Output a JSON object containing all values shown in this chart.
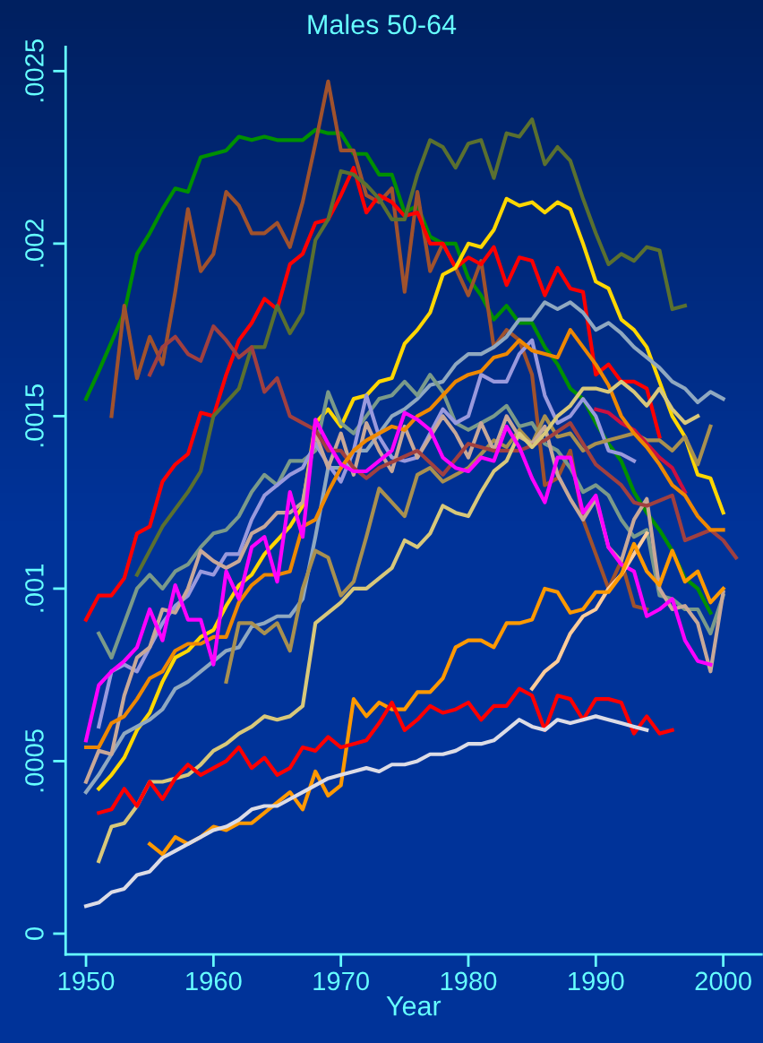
{
  "chart_data": {
    "type": "line",
    "title": "Males 50-64",
    "xlabel": "Year",
    "xlim": [
      1948.4,
      2003
    ],
    "xticks": [
      1950,
      1960,
      1970,
      1980,
      1990,
      2000
    ],
    "ylim": [
      -6e-05,
      0.00257
    ],
    "yticks": [
      {
        "value": 0,
        "label": "0"
      },
      {
        "value": 0.0005,
        "label": ".0005"
      },
      {
        "value": 0.001,
        "label": ".001"
      },
      {
        "value": 0.0015,
        "label": ".0015"
      },
      {
        "value": 0.002,
        "label": ".002"
      },
      {
        "value": 0.0025,
        "label": ".0025"
      }
    ],
    "grid": false,
    "legend": false,
    "line_style": "solid",
    "marker": "none",
    "series": [
      {
        "color": "#009000",
        "x": [
          1950,
          1951,
          1953,
          1954,
          1955,
          1956,
          1957,
          1958,
          1959,
          1960,
          1961,
          1962,
          1963,
          1964,
          1965,
          1966,
          1967,
          1968,
          1969,
          1970,
          1971,
          1972,
          1973,
          1974,
          1975,
          1976,
          1977,
          1978,
          1979,
          1980,
          1981,
          1982,
          1983,
          1984,
          1985,
          1986,
          1987,
          1988,
          1989,
          1990,
          1991,
          1992,
          1993,
          1994,
          1995,
          1996,
          1997,
          1998,
          1999
        ],
        "values": [
          0.00155,
          0.00163,
          0.0018,
          0.00197,
          0.00203,
          0.0021,
          0.00216,
          0.00215,
          0.00225,
          0.00226,
          0.00227,
          0.00231,
          0.0023,
          0.00231,
          0.0023,
          0.0023,
          0.0023,
          0.00233,
          0.00232,
          0.00232,
          0.00226,
          0.00226,
          0.0022,
          0.0022,
          0.00209,
          0.00211,
          0.00202,
          0.002,
          0.002,
          0.0019,
          0.00185,
          0.00178,
          0.00182,
          0.00177,
          0.00177,
          0.0017,
          0.00165,
          0.00158,
          0.00155,
          0.00148,
          0.00142,
          0.00137,
          0.00128,
          0.00122,
          0.00117,
          0.00111,
          0.00103,
          0.001,
          0.00093
        ]
      },
      {
        "color": "#a0522d",
        "x": [
          1952,
          1953,
          1954,
          1955,
          1956,
          1957,
          1958,
          1959,
          1960,
          1961,
          1962,
          1963,
          1964,
          1965,
          1966,
          1967,
          1968,
          1969,
          1970,
          1971,
          1972,
          1973,
          1974,
          1975,
          1976,
          1977,
          1978,
          1979,
          1980,
          1981,
          1982,
          1983,
          1984,
          1985,
          1986,
          1987,
          1988,
          1989,
          1990,
          1991,
          1992,
          1993,
          1994
        ],
        "values": [
          0.0015,
          0.00182,
          0.00161,
          0.00173,
          0.00165,
          0.00186,
          0.0021,
          0.00192,
          0.00197,
          0.00215,
          0.00211,
          0.00203,
          0.00203,
          0.00206,
          0.00199,
          0.00212,
          0.00229,
          0.00247,
          0.00227,
          0.00227,
          0.00214,
          0.00212,
          0.00216,
          0.00186,
          0.00215,
          0.00192,
          0.002,
          0.00193,
          0.00185,
          0.00195,
          0.0017,
          0.00175,
          0.00172,
          0.00162,
          0.0013,
          0.00132,
          0.0014,
          0.0012,
          0.0011,
          0.001,
          0.00108,
          0.00095,
          0.00094
        ]
      },
      {
        "color": "#ff0000",
        "x": [
          1950,
          1951,
          1952,
          1953,
          1954,
          1955,
          1956,
          1957,
          1958,
          1959,
          1960,
          1961,
          1962,
          1963,
          1964,
          1965,
          1966,
          1967,
          1968,
          1969,
          1970,
          1971,
          1972,
          1973,
          1974,
          1975,
          1976,
          1977,
          1978,
          1979,
          1980,
          1981,
          1982,
          1983,
          1984,
          1985,
          1986,
          1987,
          1988,
          1989,
          1990,
          1991,
          1992,
          1993,
          1994,
          1995
        ],
        "values": [
          0.00091,
          0.00098,
          0.00098,
          0.00103,
          0.00116,
          0.00118,
          0.00131,
          0.00136,
          0.00139,
          0.00151,
          0.0015,
          0.00162,
          0.00172,
          0.00177,
          0.00184,
          0.00181,
          0.00194,
          0.00197,
          0.00206,
          0.00207,
          0.00214,
          0.00222,
          0.00209,
          0.00214,
          0.00212,
          0.00208,
          0.00209,
          0.002,
          0.002,
          0.00193,
          0.00196,
          0.00194,
          0.00199,
          0.00188,
          0.00196,
          0.00195,
          0.00185,
          0.00193,
          0.00187,
          0.00186,
          0.00162,
          0.00165,
          0.0016,
          0.0016,
          0.00158,
          0.00144
        ]
      },
      {
        "color": "#5a7030",
        "x": [
          1954,
          1956,
          1957,
          1958,
          1959,
          1960,
          1961,
          1962,
          1963,
          1964,
          1965,
          1966,
          1967,
          1968,
          1969,
          1970,
          1971,
          1972,
          1973,
          1974,
          1975,
          1976,
          1977,
          1978,
          1979,
          1980,
          1981,
          1982,
          1983,
          1984,
          1985,
          1986,
          1987,
          1988,
          1989,
          1990,
          1991,
          1992,
          1993,
          1994,
          1995,
          1996,
          1997
        ],
        "values": [
          0.00104,
          0.00118,
          0.00123,
          0.00128,
          0.00134,
          0.0015,
          0.00154,
          0.00158,
          0.0017,
          0.0017,
          0.00182,
          0.00174,
          0.0018,
          0.00201,
          0.00207,
          0.00221,
          0.0022,
          0.00217,
          0.00213,
          0.00207,
          0.00207,
          0.0022,
          0.0023,
          0.00228,
          0.00222,
          0.00229,
          0.0023,
          0.00219,
          0.00232,
          0.00231,
          0.00236,
          0.00223,
          0.00228,
          0.00224,
          0.00213,
          0.00203,
          0.00194,
          0.00197,
          0.00195,
          0.00199,
          0.00198,
          0.00181,
          0.00182
        ]
      },
      {
        "color": "#ffd700",
        "x": [
          1951,
          1952,
          1953,
          1954,
          1955,
          1956,
          1957,
          1958,
          1959,
          1960,
          1961,
          1962,
          1963,
          1964,
          1965,
          1966,
          1967,
          1968,
          1969,
          1970,
          1971,
          1972,
          1973,
          1974,
          1975,
          1976,
          1977,
          1978,
          1979,
          1980,
          1981,
          1982,
          1983,
          1984,
          1985,
          1986,
          1987,
          1988,
          1989,
          1990,
          1991,
          1992,
          1993,
          1994,
          1995,
          1996,
          1997,
          1998,
          1999,
          2000
        ],
        "values": [
          0.00042,
          0.00046,
          0.00051,
          0.00059,
          0.00064,
          0.00073,
          0.0008,
          0.00082,
          0.00086,
          0.00088,
          0.00095,
          0.00101,
          0.00104,
          0.0011,
          0.00114,
          0.00118,
          0.00124,
          0.00148,
          0.00152,
          0.00147,
          0.00155,
          0.00156,
          0.0016,
          0.00161,
          0.00171,
          0.00175,
          0.0018,
          0.00191,
          0.00193,
          0.002,
          0.00199,
          0.00204,
          0.00213,
          0.00211,
          0.00212,
          0.00209,
          0.00212,
          0.0021,
          0.002,
          0.00189,
          0.00187,
          0.00178,
          0.00175,
          0.0017,
          0.0016,
          0.0015,
          0.00144,
          0.00133,
          0.00132,
          0.00122
        ]
      },
      {
        "color": "#8fa8c0",
        "x": [
          1950,
          1951,
          1952,
          1953,
          1954,
          1955,
          1956,
          1957,
          1958,
          1959,
          1960,
          1961,
          1962,
          1963,
          1964,
          1965,
          1966,
          1967,
          1968,
          1969,
          1970,
          1971,
          1972,
          1973,
          1974,
          1975,
          1976,
          1977,
          1978,
          1979,
          1980,
          1981,
          1982,
          1983,
          1984,
          1985,
          1986,
          1987,
          1988,
          1989,
          1990,
          1991,
          1992,
          1993,
          1994,
          1995,
          1996,
          1997,
          1998,
          1999,
          2000
        ],
        "values": [
          0.00041,
          0.00046,
          0.00052,
          0.00058,
          0.0006,
          0.00062,
          0.00065,
          0.00071,
          0.00073,
          0.00076,
          0.00079,
          0.00082,
          0.00083,
          0.00089,
          0.0009,
          0.00092,
          0.00092,
          0.00097,
          0.00115,
          0.00135,
          0.00135,
          0.0014,
          0.0014,
          0.00145,
          0.0015,
          0.00152,
          0.00155,
          0.00159,
          0.0016,
          0.00165,
          0.00168,
          0.00168,
          0.0017,
          0.00173,
          0.00178,
          0.00178,
          0.00183,
          0.00181,
          0.00183,
          0.0018,
          0.00175,
          0.00177,
          0.00174,
          0.0017,
          0.00167,
          0.00164,
          0.0016,
          0.00158,
          0.00154,
          0.00157,
          0.00155
        ]
      },
      {
        "color": "#7a9a8a",
        "x": [
          1951,
          1952,
          1953,
          1954,
          1955,
          1956,
          1957,
          1958,
          1959,
          1960,
          1961,
          1962,
          1963,
          1964,
          1965,
          1966,
          1967,
          1968,
          1969,
          1970,
          1971,
          1972,
          1973,
          1974,
          1975,
          1976,
          1977,
          1978,
          1979,
          1980,
          1981,
          1982,
          1983,
          1984,
          1985,
          1986,
          1987,
          1988,
          1989,
          1990,
          1991,
          1992,
          1993,
          1994,
          1995,
          1996,
          1997,
          1998,
          1999,
          2000
        ],
        "values": [
          0.00087,
          0.0008,
          0.0009,
          0.001,
          0.00104,
          0.001,
          0.00105,
          0.00107,
          0.00112,
          0.00116,
          0.00117,
          0.00121,
          0.00128,
          0.00133,
          0.0013,
          0.00137,
          0.00137,
          0.0014,
          0.00157,
          0.00148,
          0.00145,
          0.0015,
          0.00155,
          0.00156,
          0.0016,
          0.00156,
          0.00162,
          0.00157,
          0.00148,
          0.00146,
          0.00148,
          0.0015,
          0.00153,
          0.00147,
          0.00148,
          0.00142,
          0.0014,
          0.00135,
          0.00128,
          0.0013,
          0.00127,
          0.0012,
          0.00115,
          0.00117,
          0.00098,
          0.00097,
          0.00094,
          0.00094,
          0.00087,
          0.00098
        ]
      },
      {
        "color": "#9999dd",
        "x": [
          1951,
          1952,
          1953,
          1954,
          1955,
          1956,
          1957,
          1958,
          1959,
          1960,
          1961,
          1962,
          1963,
          1964,
          1965,
          1966,
          1967,
          1968,
          1969,
          1970,
          1971,
          1972,
          1973,
          1974,
          1975,
          1976,
          1977,
          1978,
          1979,
          1980,
          1981,
          1982,
          1983,
          1984,
          1985,
          1986,
          1987,
          1988,
          1989,
          1990,
          1991,
          1992,
          1993
        ],
        "values": [
          0.0006,
          0.00076,
          0.00078,
          0.00076,
          0.00083,
          0.0009,
          0.00095,
          0.00098,
          0.00105,
          0.00104,
          0.0011,
          0.0011,
          0.0012,
          0.00127,
          0.0013,
          0.00133,
          0.00135,
          0.00142,
          0.00136,
          0.00131,
          0.0014,
          0.00156,
          0.00144,
          0.00138,
          0.00137,
          0.00138,
          0.00145,
          0.00152,
          0.00148,
          0.0015,
          0.00162,
          0.0016,
          0.0016,
          0.00168,
          0.00172,
          0.00156,
          0.00148,
          0.0015,
          0.00155,
          0.0015,
          0.0014,
          0.00139,
          0.00137
        ]
      },
      {
        "color": "#a89050",
        "x": [
          1961,
          1962,
          1963,
          1964,
          1965,
          1966,
          1967,
          1968,
          1969,
          1970,
          1971,
          1972,
          1973,
          1974,
          1975,
          1976,
          1977,
          1978,
          1979,
          1980,
          1981,
          1982,
          1983,
          1984,
          1985,
          1986,
          1987,
          1988,
          1989,
          1990,
          1991,
          1992,
          1993,
          1994,
          1995,
          1996,
          1997,
          1998,
          1999
        ],
        "values": [
          0.00073,
          0.0009,
          0.0009,
          0.00087,
          0.0009,
          0.00082,
          0.001,
          0.00111,
          0.00109,
          0.00098,
          0.00102,
          0.00115,
          0.00129,
          0.00125,
          0.00121,
          0.00133,
          0.00135,
          0.00131,
          0.00133,
          0.00135,
          0.00139,
          0.00143,
          0.00141,
          0.00146,
          0.00142,
          0.0015,
          0.00144,
          0.00145,
          0.0014,
          0.00142,
          0.00143,
          0.00144,
          0.00145,
          0.00143,
          0.00143,
          0.0014,
          0.00144,
          0.00136,
          0.00147
        ]
      },
      {
        "color": "#c8a898",
        "x": [
          1950,
          1951,
          1952,
          1953,
          1954,
          1955,
          1956,
          1957,
          1958,
          1959,
          1960,
          1961,
          1962,
          1963,
          1964,
          1965,
          1966,
          1967,
          1968,
          1969,
          1970,
          1971,
          1972,
          1973,
          1974,
          1975,
          1976,
          1977,
          1978,
          1979,
          1980,
          1981,
          1982,
          1983,
          1984,
          1985,
          1986,
          1987,
          1988,
          1989,
          1990,
          1991,
          1992,
          1993,
          1994,
          1995,
          1996,
          1997,
          1998,
          1999,
          2000
        ],
        "values": [
          0.00044,
          0.00053,
          0.00052,
          0.00069,
          0.0008,
          0.00083,
          0.00094,
          0.00093,
          0.001,
          0.00111,
          0.00108,
          0.00106,
          0.00108,
          0.00116,
          0.00118,
          0.00122,
          0.00122,
          0.00125,
          0.00145,
          0.00135,
          0.00145,
          0.00133,
          0.00148,
          0.0014,
          0.00134,
          0.00147,
          0.00138,
          0.00144,
          0.0015,
          0.00145,
          0.00138,
          0.00148,
          0.0014,
          0.0015,
          0.00144,
          0.00142,
          0.00147,
          0.00133,
          0.00126,
          0.0012,
          0.00126,
          0.00112,
          0.00108,
          0.0012,
          0.00126,
          0.001,
          0.00094,
          0.00095,
          0.0009,
          0.00076,
          0.00099
        ]
      },
      {
        "color": "#a04040",
        "x": [
          1955,
          1956,
          1957,
          1958,
          1959,
          1960,
          1961,
          1962,
          1963,
          1964,
          1965,
          1966,
          1967,
          1968,
          1969,
          1970,
          1971,
          1972,
          1973,
          1976,
          1978,
          1980,
          1982,
          1984,
          1986,
          1988,
          1990,
          1992,
          1993,
          1994,
          1996,
          1997,
          1999,
          2000,
          2001
        ],
        "values": [
          0.00162,
          0.0017,
          0.00173,
          0.00168,
          0.00166,
          0.00176,
          0.00172,
          0.00167,
          0.0017,
          0.00157,
          0.00161,
          0.0015,
          0.00148,
          0.00146,
          0.0014,
          0.0014,
          0.00135,
          0.00132,
          0.00135,
          0.0014,
          0.00133,
          0.00142,
          0.0014,
          0.0014,
          0.00143,
          0.00148,
          0.00136,
          0.0013,
          0.00125,
          0.00124,
          0.00127,
          0.00114,
          0.00117,
          0.00114,
          0.00109
        ]
      },
      {
        "color": "#cc1040",
        "x": [
          1990,
          1991,
          1992,
          1993,
          1994,
          1995,
          1996,
          1997
        ],
        "values": [
          0.00152,
          0.00151,
          0.00148,
          0.00146,
          0.00142,
          0.00138,
          0.00135,
          0.00128
        ]
      },
      {
        "color": "#ee8800",
        "x": [
          1950,
          1951,
          1952,
          1953,
          1954,
          1955,
          1956,
          1957,
          1958,
          1959,
          1960,
          1961,
          1962,
          1963,
          1964,
          1965,
          1966,
          1967,
          1968,
          1969,
          1970,
          1971,
          1972,
          1973,
          1974,
          1975,
          1976,
          1977,
          1978,
          1979,
          1980,
          1981,
          1982,
          1983,
          1984,
          1985,
          1986,
          1987,
          1988,
          1989,
          1990,
          1991,
          1992,
          1993,
          1994,
          1995,
          1996,
          1997,
          1998,
          1999,
          2000
        ],
        "values": [
          0.00054,
          0.00054,
          0.00061,
          0.00063,
          0.00068,
          0.00074,
          0.00076,
          0.00082,
          0.00084,
          0.00084,
          0.00086,
          0.00086,
          0.00096,
          0.00101,
          0.00104,
          0.00104,
          0.00105,
          0.00118,
          0.0012,
          0.00128,
          0.00135,
          0.0014,
          0.00143,
          0.00145,
          0.00147,
          0.00146,
          0.0015,
          0.00152,
          0.00156,
          0.0016,
          0.00162,
          0.00163,
          0.00167,
          0.00168,
          0.00172,
          0.00169,
          0.00168,
          0.00167,
          0.00175,
          0.0017,
          0.00165,
          0.00159,
          0.0015,
          0.00145,
          0.00141,
          0.00136,
          0.0013,
          0.00127,
          0.00121,
          0.00117,
          0.00117
        ]
      },
      {
        "color": "#d8c87a",
        "x": [
          1951,
          1952,
          1953,
          1954,
          1955,
          1956,
          1957,
          1958,
          1959,
          1960,
          1961,
          1962,
          1963,
          1964,
          1965,
          1966,
          1967,
          1968,
          1969,
          1970,
          1971,
          1972,
          1973,
          1974,
          1975,
          1976,
          1977,
          1978,
          1979,
          1980,
          1981,
          1982,
          1983,
          1984,
          1985,
          1986,
          1987,
          1988,
          1989,
          1990,
          1991,
          1992,
          1993,
          1994,
          1995,
          1996,
          1997,
          1998
        ],
        "values": [
          0.00021,
          0.00031,
          0.00032,
          0.00037,
          0.00044,
          0.00044,
          0.00045,
          0.00046,
          0.00049,
          0.00053,
          0.00055,
          0.00058,
          0.0006,
          0.00063,
          0.00062,
          0.00063,
          0.00066,
          0.0009,
          0.00093,
          0.00096,
          0.001,
          0.001,
          0.00103,
          0.00106,
          0.00114,
          0.00112,
          0.00116,
          0.00124,
          0.00122,
          0.00121,
          0.00128,
          0.00134,
          0.00137,
          0.00145,
          0.00141,
          0.00145,
          0.0015,
          0.00153,
          0.00158,
          0.00158,
          0.00157,
          0.0016,
          0.00157,
          0.00153,
          0.00158,
          0.00152,
          0.00148,
          0.0015
        ]
      },
      {
        "color": "#ff00ff",
        "x": [
          1950,
          1951,
          1952,
          1953,
          1954,
          1955,
          1956,
          1957,
          1958,
          1959,
          1960,
          1961,
          1962,
          1963,
          1964,
          1965,
          1966,
          1967,
          1968,
          1969,
          1970,
          1971,
          1972,
          1973,
          1974,
          1975,
          1976,
          1977,
          1978,
          1979,
          1980,
          1981,
          1982,
          1983,
          1984,
          1985,
          1986,
          1987,
          1988,
          1989,
          1990,
          1991,
          1992,
          1993,
          1994,
          1995,
          1996,
          1997,
          1998,
          1999
        ],
        "values": [
          0.00056,
          0.00072,
          0.00076,
          0.00079,
          0.00083,
          0.00094,
          0.00085,
          0.00101,
          0.00091,
          0.00091,
          0.00078,
          0.00105,
          0.00097,
          0.00112,
          0.00115,
          0.00102,
          0.00128,
          0.00115,
          0.00149,
          0.00142,
          0.00136,
          0.00134,
          0.00134,
          0.00137,
          0.0014,
          0.00151,
          0.00149,
          0.00146,
          0.00138,
          0.00135,
          0.00134,
          0.00138,
          0.00137,
          0.00147,
          0.00141,
          0.00132,
          0.00125,
          0.00138,
          0.00138,
          0.00122,
          0.00127,
          0.00112,
          0.00107,
          0.00105,
          0.00092,
          0.00094,
          0.00097,
          0.00085,
          0.00079,
          0.00078
        ]
      },
      {
        "color": "#ffcc99",
        "x": [
          1985,
          1986,
          1987,
          1988,
          1989,
          1990,
          1991,
          1992,
          1993,
          1994
        ],
        "values": [
          0.00071,
          0.00076,
          0.00079,
          0.00087,
          0.00092,
          0.00094,
          0.001,
          0.00104,
          0.0011,
          0.00116
        ]
      },
      {
        "color": "#ff9900",
        "x": [
          1955,
          1956,
          1957,
          1958,
          1959,
          1960,
          1961,
          1962,
          1963,
          1964,
          1965,
          1966,
          1967,
          1968,
          1969,
          1970,
          1971,
          1972,
          1973,
          1974,
          1975,
          1976,
          1977,
          1978,
          1979,
          1980,
          1981,
          1982,
          1983,
          1984,
          1985,
          1986,
          1987,
          1988,
          1989,
          1990,
          1991,
          1992,
          1993,
          1994,
          1995,
          1996,
          1997,
          1998,
          1999,
          2000
        ],
        "values": [
          0.00026,
          0.00023,
          0.00028,
          0.00026,
          0.00028,
          0.00031,
          0.0003,
          0.00032,
          0.00032,
          0.00035,
          0.00038,
          0.00041,
          0.00036,
          0.00047,
          0.0004,
          0.00043,
          0.00068,
          0.00063,
          0.00067,
          0.00065,
          0.00065,
          0.0007,
          0.0007,
          0.00074,
          0.00083,
          0.00085,
          0.00085,
          0.00083,
          0.0009,
          0.0009,
          0.00091,
          0.001,
          0.00099,
          0.00093,
          0.00094,
          0.00099,
          0.00099,
          0.00104,
          0.00113,
          0.00105,
          0.00101,
          0.00111,
          0.00102,
          0.00105,
          0.00096,
          0.001
        ]
      },
      {
        "color": "#ff0000",
        "x": [
          1951,
          1952,
          1953,
          1954,
          1955,
          1956,
          1957,
          1958,
          1959,
          1960,
          1961,
          1962,
          1963,
          1964,
          1965,
          1966,
          1967,
          1968,
          1969,
          1970,
          1971,
          1972,
          1973,
          1974,
          1975,
          1976,
          1977,
          1978,
          1979,
          1980,
          1981,
          1982,
          1983,
          1984,
          1985,
          1986,
          1987,
          1988,
          1989,
          1990,
          1991,
          1992,
          1993,
          1994,
          1995,
          1996
        ],
        "values": [
          0.00035,
          0.00036,
          0.00042,
          0.00037,
          0.00044,
          0.00039,
          0.00045,
          0.00049,
          0.00046,
          0.00048,
          0.0005,
          0.00054,
          0.00048,
          0.00051,
          0.00046,
          0.00048,
          0.00054,
          0.00053,
          0.00057,
          0.00054,
          0.00055,
          0.00056,
          0.00061,
          0.00067,
          0.00059,
          0.00062,
          0.00066,
          0.00064,
          0.00065,
          0.00067,
          0.00062,
          0.00066,
          0.00066,
          0.00071,
          0.00069,
          0.00059,
          0.00069,
          0.00068,
          0.00062,
          0.00068,
          0.00068,
          0.00067,
          0.00058,
          0.00063,
          0.00058,
          0.00059
        ]
      },
      {
        "color": "#dcdce6",
        "x": [
          1950,
          1951,
          1952,
          1953,
          1954,
          1955,
          1956,
          1957,
          1958,
          1959,
          1960,
          1961,
          1962,
          1963,
          1964,
          1965,
          1966,
          1967,
          1968,
          1969,
          1970,
          1971,
          1972,
          1973,
          1974,
          1975,
          1976,
          1977,
          1978,
          1979,
          1980,
          1981,
          1982,
          1983,
          1984,
          1985,
          1986,
          1987,
          1988,
          1989,
          1990,
          1991,
          1992,
          1993,
          1994
        ],
        "values": [
          8e-05,
          9e-05,
          0.00012,
          0.00013,
          0.00017,
          0.00018,
          0.00022,
          0.00024,
          0.00026,
          0.00028,
          0.0003,
          0.00031,
          0.00033,
          0.00036,
          0.00037,
          0.00037,
          0.00039,
          0.00041,
          0.00043,
          0.00045,
          0.00046,
          0.00047,
          0.00048,
          0.00047,
          0.00049,
          0.00049,
          0.0005,
          0.00052,
          0.00052,
          0.00053,
          0.00055,
          0.00055,
          0.00056,
          0.00059,
          0.00062,
          0.0006,
          0.00059,
          0.00062,
          0.00061,
          0.00062,
          0.00063,
          0.00062,
          0.00061,
          0.0006,
          0.00059
        ]
      }
    ]
  }
}
